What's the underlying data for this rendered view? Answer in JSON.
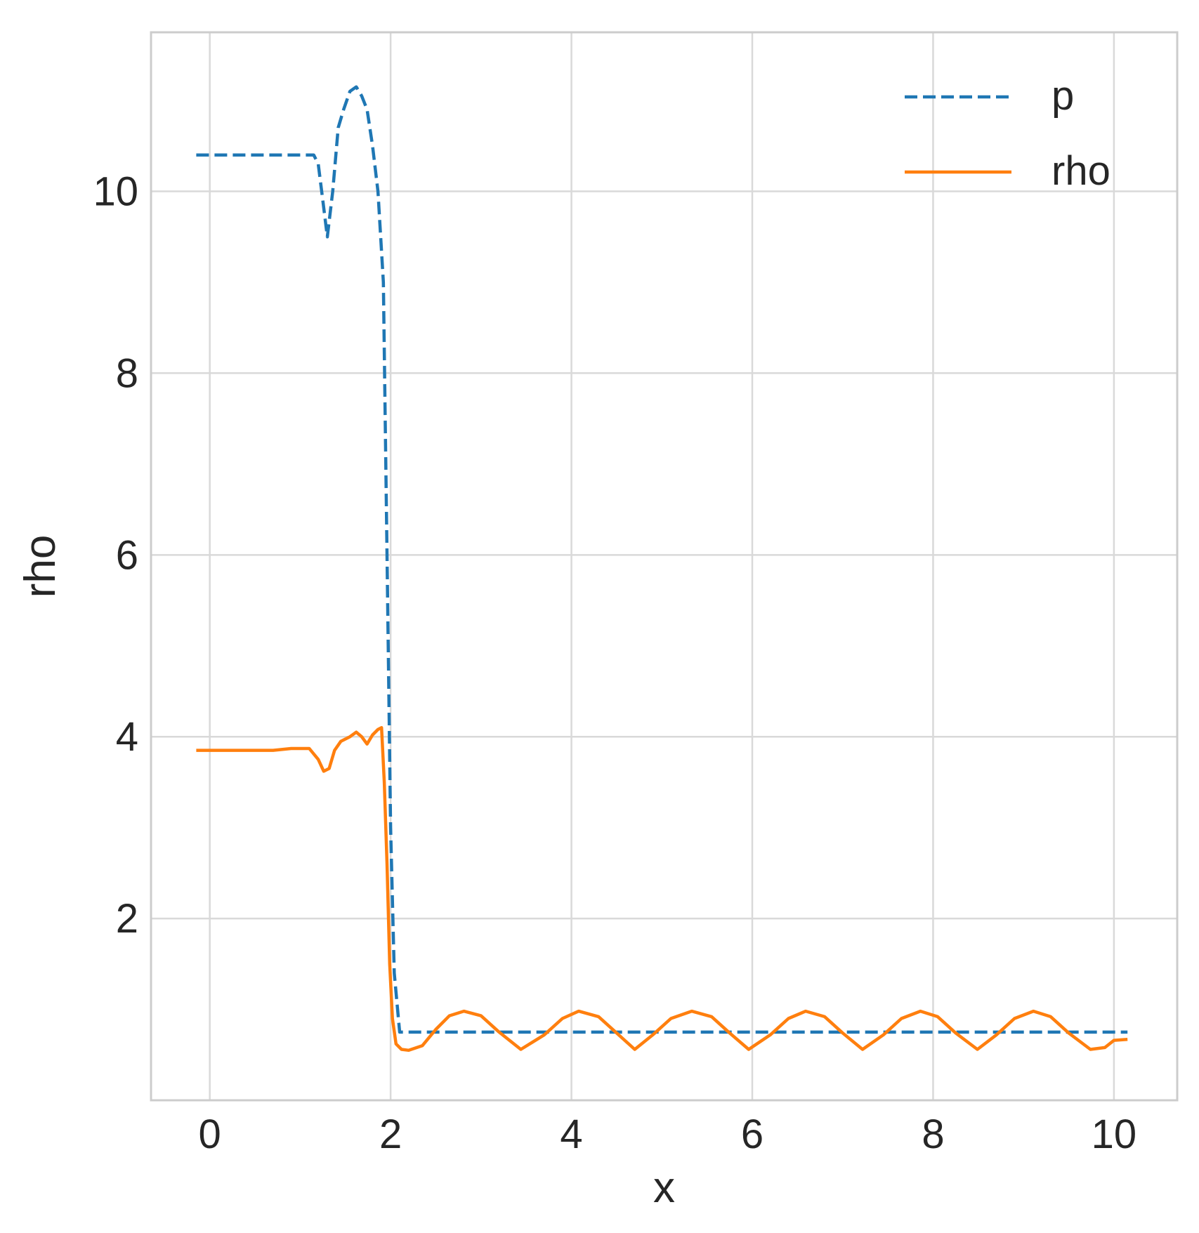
{
  "chart_data": {
    "type": "line",
    "title": "",
    "xlabel": "x",
    "ylabel": "rho",
    "xlim": [
      -0.65,
      10.7
    ],
    "ylim": [
      0.0,
      11.75
    ],
    "xticks": [
      0,
      2,
      4,
      6,
      8,
      10
    ],
    "yticks": [
      2,
      4,
      6,
      8,
      10
    ],
    "grid": true,
    "legend": {
      "placement": "top-right",
      "entries": [
        "p",
        "rho"
      ]
    },
    "colors": {
      "p": "#1f77b4",
      "rho": "#ff7f0e",
      "grid": "#d9d9d9",
      "frame": "#cccccc"
    },
    "series": [
      {
        "name": "p",
        "style": "dashed",
        "x": [
          -0.15,
          0.3,
          0.8,
          1.15,
          1.2,
          1.25,
          1.3,
          1.36,
          1.42,
          1.48,
          1.55,
          1.62,
          1.68,
          1.74,
          1.8,
          1.86,
          1.92,
          1.96,
          2.0,
          2.04,
          2.1,
          3.0,
          4.0,
          5.0,
          6.0,
          7.0,
          8.0,
          9.0,
          10.15
        ],
        "y": [
          10.4,
          10.4,
          10.4,
          10.4,
          10.3,
          9.9,
          9.5,
          10.0,
          10.7,
          10.9,
          11.1,
          11.15,
          11.05,
          10.9,
          10.5,
          10.0,
          9.0,
          6.0,
          3.0,
          1.4,
          0.75,
          0.75,
          0.75,
          0.75,
          0.75,
          0.75,
          0.75,
          0.75,
          0.75
        ]
      },
      {
        "name": "rho",
        "style": "solid",
        "x": [
          -0.15,
          0.3,
          0.7,
          0.9,
          1.1,
          1.2,
          1.26,
          1.32,
          1.38,
          1.45,
          1.55,
          1.62,
          1.68,
          1.74,
          1.8,
          1.86,
          1.9,
          1.93,
          1.96,
          1.99,
          2.02,
          2.06,
          2.12,
          2.2,
          2.35,
          2.5,
          2.65,
          2.81,
          3.0,
          3.2,
          3.44,
          3.7,
          3.9,
          4.08,
          4.3,
          4.5,
          4.7,
          4.9,
          5.1,
          5.33,
          5.55,
          5.75,
          5.96,
          6.2,
          6.4,
          6.59,
          6.8,
          7.0,
          7.22,
          7.45,
          7.65,
          7.86,
          8.05,
          8.25,
          8.49,
          8.7,
          8.9,
          9.11,
          9.3,
          9.5,
          9.74,
          9.9,
          10.0,
          10.15
        ],
        "y": [
          3.85,
          3.85,
          3.85,
          3.87,
          3.87,
          3.75,
          3.62,
          3.65,
          3.85,
          3.95,
          4.0,
          4.05,
          4.0,
          3.92,
          4.02,
          4.08,
          4.1,
          3.5,
          2.6,
          1.5,
          0.9,
          0.62,
          0.56,
          0.55,
          0.6,
          0.78,
          0.93,
          0.98,
          0.93,
          0.75,
          0.56,
          0.72,
          0.9,
          0.98,
          0.92,
          0.74,
          0.56,
          0.72,
          0.9,
          0.98,
          0.92,
          0.74,
          0.56,
          0.72,
          0.9,
          0.98,
          0.92,
          0.74,
          0.56,
          0.72,
          0.9,
          0.98,
          0.92,
          0.74,
          0.56,
          0.72,
          0.9,
          0.98,
          0.92,
          0.74,
          0.56,
          0.58,
          0.66,
          0.67
        ]
      }
    ]
  }
}
